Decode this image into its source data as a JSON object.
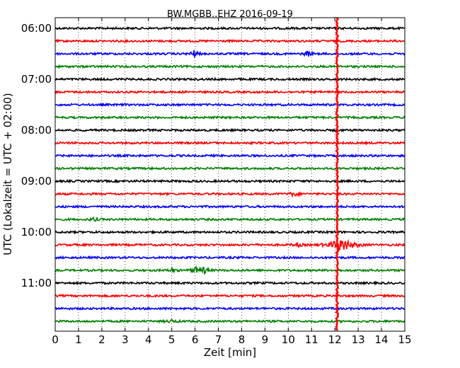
{
  "chart_data": {
    "type": "line",
    "title": "BW.MGBB..EHZ 2016-09-19",
    "xlabel": "Zeit  [min]",
    "ylabel": "UTC (Lokalzeit = UTC + 02:00)",
    "xlim": [
      0,
      15
    ],
    "x_ticks": [
      "0",
      "1",
      "2",
      "3",
      "4",
      "5",
      "6",
      "7",
      "8",
      "9",
      "10",
      "11",
      "12",
      "13",
      "14",
      "15"
    ],
    "y_ticks": [
      "06:00",
      "07:00",
      "08:00",
      "09:00",
      "10:00",
      "11:00"
    ],
    "grid": "vertical-dotted",
    "traces_per_hour": 4,
    "trace_minutes": 15,
    "trace_colors": [
      "#000000",
      "#ff0000",
      "#0000ff",
      "#008000"
    ],
    "traces": [
      {
        "start": "06:00"
      },
      {
        "start": "06:15"
      },
      {
        "start": "06:30"
      },
      {
        "start": "06:45"
      },
      {
        "start": "07:00"
      },
      {
        "start": "07:15"
      },
      {
        "start": "07:30"
      },
      {
        "start": "07:45"
      },
      {
        "start": "08:00"
      },
      {
        "start": "08:15"
      },
      {
        "start": "08:30"
      },
      {
        "start": "08:45"
      },
      {
        "start": "09:00"
      },
      {
        "start": "09:15"
      },
      {
        "start": "09:30"
      },
      {
        "start": "09:45"
      },
      {
        "start": "10:00"
      },
      {
        "start": "10:15"
      },
      {
        "start": "10:30"
      },
      {
        "start": "10:45"
      },
      {
        "start": "11:00"
      },
      {
        "start": "11:15"
      },
      {
        "start": "11:30"
      },
      {
        "start": "11:45"
      }
    ],
    "events": [
      {
        "start": "06:30",
        "minute": 5.95,
        "amplitude": 1.0
      },
      {
        "start": "06:30",
        "minute": 10.85,
        "amplitude": 0.8
      },
      {
        "start": "09:15",
        "minute": 10.25,
        "amplitude": 0.9
      },
      {
        "start": "09:45",
        "minute": 1.65,
        "amplitude": 0.5
      },
      {
        "start": "10:15",
        "minute": 10.4,
        "amplitude": 0.6
      },
      {
        "start": "10:15",
        "minute": 12.3,
        "amplitude": 2.2
      },
      {
        "start": "10:45",
        "minute": 5.0,
        "amplitude": 0.6
      },
      {
        "start": "10:45",
        "minute": 6.0,
        "amplitude": 1.1
      },
      {
        "start": "10:45",
        "minute": 6.4,
        "amplitude": 1.0
      },
      {
        "start": "11:45",
        "minute": 5.0,
        "amplitude": 0.5
      }
    ],
    "disturbance": {
      "minute": 12.1,
      "color": "#ff0000",
      "from": "06:00",
      "to": "11:45"
    }
  }
}
